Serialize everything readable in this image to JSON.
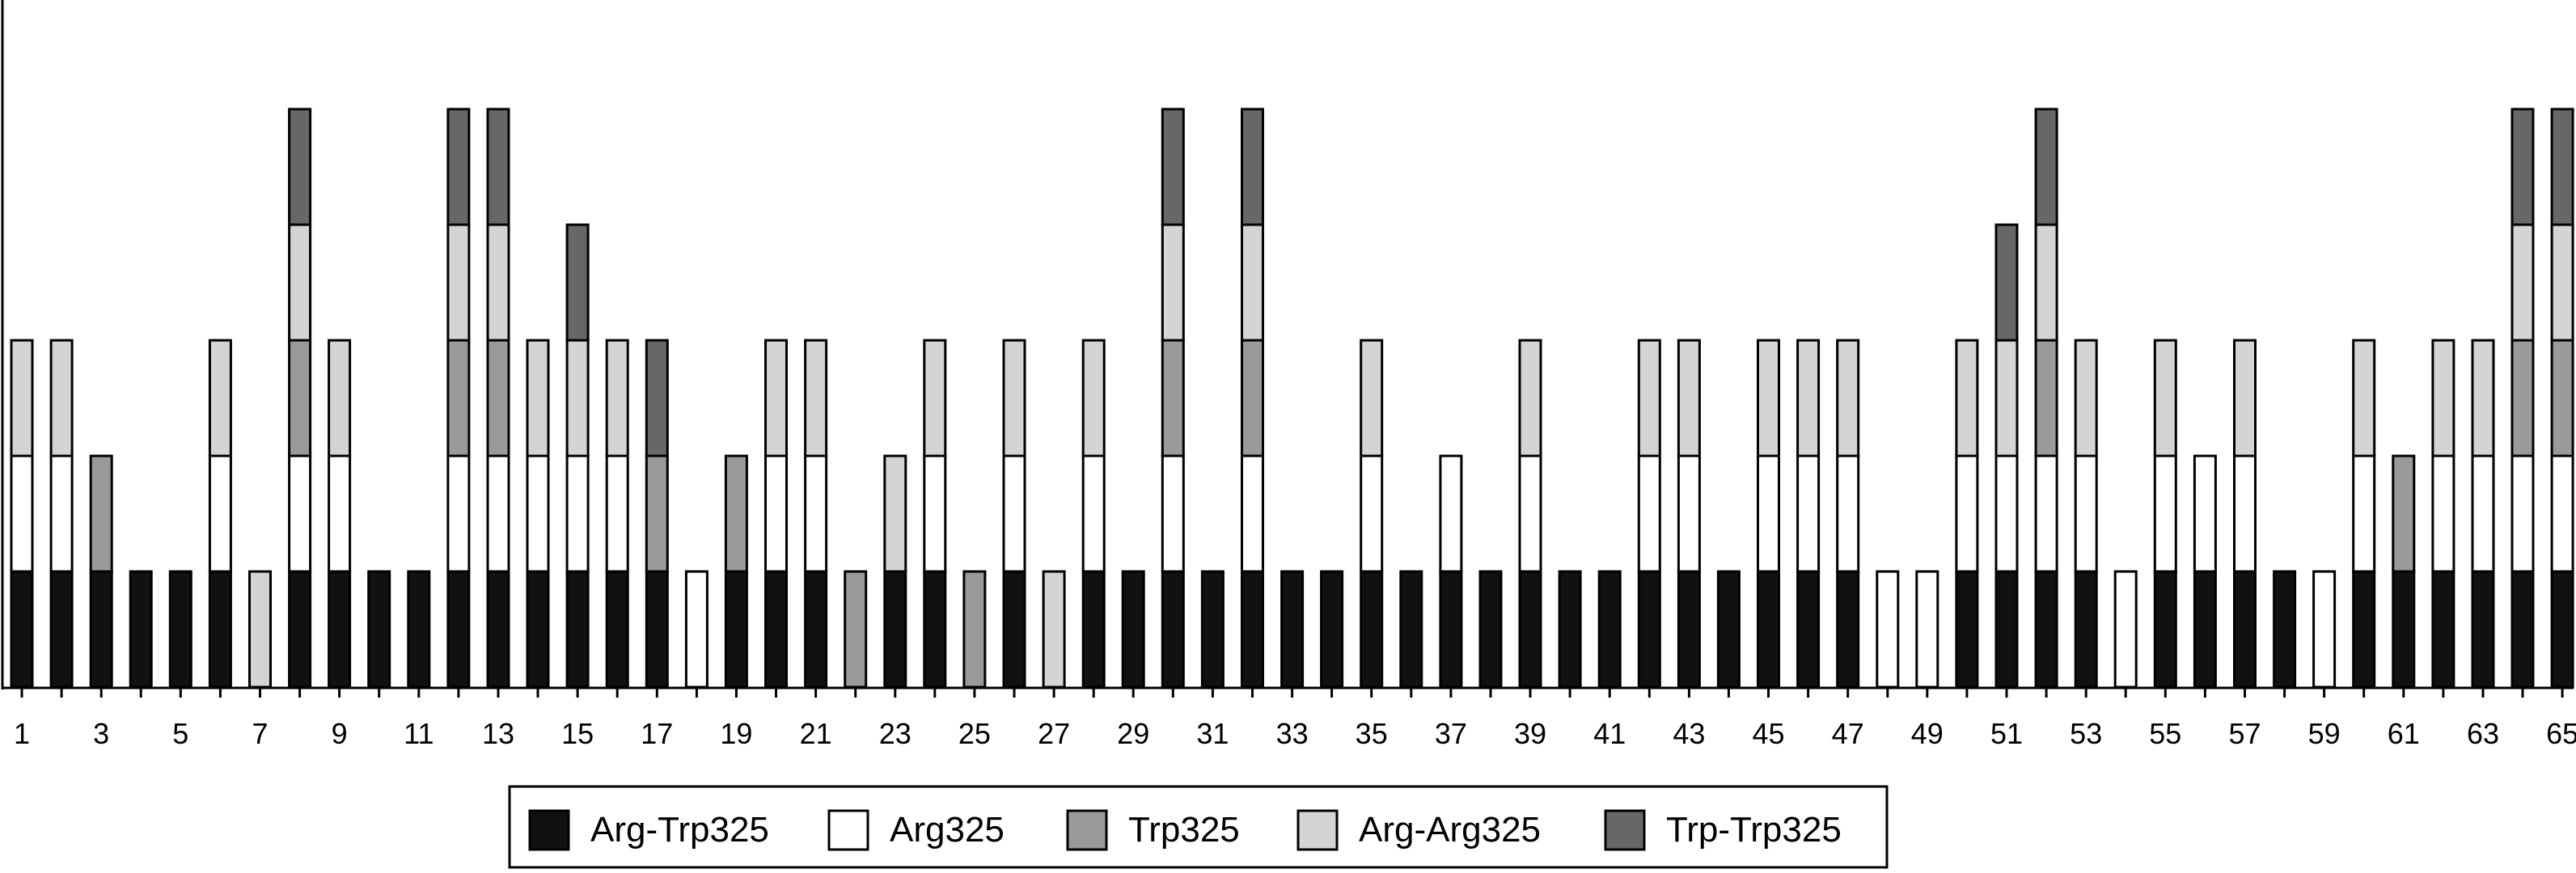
{
  "chart_data": {
    "type": "bar",
    "stacked": true,
    "title": "",
    "xlabel": "",
    "ylabel": "",
    "ylim": [
      0,
      6
    ],
    "grid": false,
    "legend_position": "bottom",
    "categories": [
      "1",
      "2",
      "3",
      "4",
      "5",
      "6",
      "7",
      "8",
      "9",
      "10",
      "11",
      "12",
      "13",
      "14",
      "15",
      "16",
      "17",
      "18",
      "19",
      "20",
      "21",
      "22",
      "23",
      "24",
      "25",
      "26",
      "27",
      "28",
      "29",
      "30",
      "31",
      "32",
      "33",
      "34",
      "35",
      "36",
      "37",
      "38",
      "39",
      "40",
      "41",
      "42",
      "43",
      "44",
      "45",
      "46",
      "47",
      "48",
      "49",
      "50",
      "51",
      "52",
      "53",
      "54",
      "55",
      "56",
      "57",
      "58",
      "59",
      "60",
      "61",
      "62",
      "63",
      "64",
      "65"
    ],
    "x_tick_labels": [
      "1",
      "3",
      "5",
      "7",
      "9",
      "11",
      "13",
      "15",
      "17",
      "19",
      "21",
      "23",
      "25",
      "27",
      "29",
      "31",
      "33",
      "35",
      "37",
      "39",
      "41",
      "43",
      "45",
      "47",
      "49",
      "51",
      "53",
      "55",
      "57",
      "59",
      "61",
      "63",
      "65"
    ],
    "segments": [
      [
        "Arg-Trp325",
        "Arg325",
        "Arg-Arg325"
      ],
      [
        "Arg-Trp325",
        "Arg325",
        "Arg-Arg325"
      ],
      [
        "Arg-Trp325",
        "Trp325"
      ],
      [
        "Arg-Trp325"
      ],
      [
        "Arg-Trp325"
      ],
      [
        "Arg-Trp325",
        "Arg325",
        "Arg-Arg325"
      ],
      [
        "Arg-Arg325"
      ],
      [
        "Arg-Trp325",
        "Arg325",
        "Trp325",
        "Arg-Arg325",
        "Trp-Trp325"
      ],
      [
        "Arg-Trp325",
        "Arg325",
        "Arg-Arg325"
      ],
      [
        "Arg-Trp325"
      ],
      [
        "Arg-Trp325"
      ],
      [
        "Arg-Trp325",
        "Arg325",
        "Trp325",
        "Arg-Arg325",
        "Trp-Trp325"
      ],
      [
        "Arg-Trp325",
        "Arg325",
        "Trp325",
        "Arg-Arg325",
        "Trp-Trp325"
      ],
      [
        "Arg-Trp325",
        "Arg325",
        "Arg-Arg325"
      ],
      [
        "Arg-Trp325",
        "Arg325",
        "Arg-Arg325",
        "Trp-Trp325"
      ],
      [
        "Arg-Trp325",
        "Arg325",
        "Arg-Arg325"
      ],
      [
        "Arg-Trp325",
        "Trp325",
        "Trp-Trp325"
      ],
      [
        "Arg325"
      ],
      [
        "Arg-Trp325",
        "Trp325"
      ],
      [
        "Arg-Trp325",
        "Arg325",
        "Arg-Arg325"
      ],
      [
        "Arg-Trp325",
        "Arg325",
        "Arg-Arg325"
      ],
      [
        "Trp325"
      ],
      [
        "Arg-Trp325",
        "Arg-Arg325"
      ],
      [
        "Arg-Trp325",
        "Arg325",
        "Arg-Arg325"
      ],
      [
        "Trp325"
      ],
      [
        "Arg-Trp325",
        "Arg325",
        "Arg-Arg325"
      ],
      [
        "Arg-Arg325"
      ],
      [
        "Arg-Trp325",
        "Arg325",
        "Arg-Arg325"
      ],
      [
        "Arg-Trp325"
      ],
      [
        "Arg-Trp325",
        "Arg325",
        "Trp325",
        "Arg-Arg325",
        "Trp-Trp325"
      ],
      [
        "Arg-Trp325"
      ],
      [
        "Arg-Trp325",
        "Arg325",
        "Trp325",
        "Arg-Arg325",
        "Trp-Trp325"
      ],
      [
        "Arg-Trp325"
      ],
      [
        "Arg-Trp325"
      ],
      [
        "Arg-Trp325",
        "Arg325",
        "Arg-Arg325"
      ],
      [
        "Arg-Trp325"
      ],
      [
        "Arg-Trp325",
        "Arg325"
      ],
      [
        "Arg-Trp325"
      ],
      [
        "Arg-Trp325",
        "Arg325",
        "Arg-Arg325"
      ],
      [
        "Arg-Trp325"
      ],
      [
        "Arg-Trp325"
      ],
      [
        "Arg-Trp325",
        "Arg325",
        "Arg-Arg325"
      ],
      [
        "Arg-Trp325",
        "Arg325",
        "Arg-Arg325"
      ],
      [
        "Arg-Trp325"
      ],
      [
        "Arg-Trp325",
        "Arg325",
        "Arg-Arg325"
      ],
      [
        "Arg-Trp325",
        "Arg325",
        "Arg-Arg325"
      ],
      [
        "Arg-Trp325",
        "Arg325",
        "Arg-Arg325"
      ],
      [
        "Arg325"
      ],
      [
        "Arg325"
      ],
      [
        "Arg-Trp325",
        "Arg325",
        "Arg-Arg325"
      ],
      [
        "Arg-Trp325",
        "Arg325",
        "Arg-Arg325",
        "Trp-Trp325"
      ],
      [
        "Arg-Trp325",
        "Arg325",
        "Trp325",
        "Arg-Arg325",
        "Trp-Trp325"
      ],
      [
        "Arg-Trp325",
        "Arg325",
        "Arg-Arg325"
      ],
      [
        "Arg325"
      ],
      [
        "Arg-Trp325",
        "Arg325",
        "Arg-Arg325"
      ],
      [
        "Arg-Trp325",
        "Arg325"
      ],
      [
        "Arg-Trp325",
        "Arg325",
        "Arg-Arg325"
      ],
      [
        "Arg-Trp325"
      ],
      [
        "Arg325"
      ],
      [
        "Arg-Trp325",
        "Arg325",
        "Arg-Arg325"
      ],
      [
        "Arg-Trp325",
        "Trp325"
      ],
      [
        "Arg-Trp325",
        "Arg325",
        "Arg-Arg325"
      ],
      [
        "Arg-Trp325",
        "Arg325",
        "Arg-Arg325"
      ],
      [
        "Arg-Trp325",
        "Arg325",
        "Trp325",
        "Arg-Arg325",
        "Trp-Trp325"
      ],
      [
        "Arg-Trp325",
        "Arg325",
        "Trp325",
        "Arg-Arg325",
        "Trp-Trp325"
      ]
    ],
    "legend": [
      {
        "name": "Arg-Trp325",
        "color": "#111111"
      },
      {
        "name": "Arg325",
        "color": "#ffffff"
      },
      {
        "name": "Trp325",
        "color": "#9a9a9a"
      },
      {
        "name": "Arg-Arg325",
        "color": "#d4d4d4"
      },
      {
        "name": "Trp-Trp325",
        "color": "#676767"
      }
    ]
  }
}
